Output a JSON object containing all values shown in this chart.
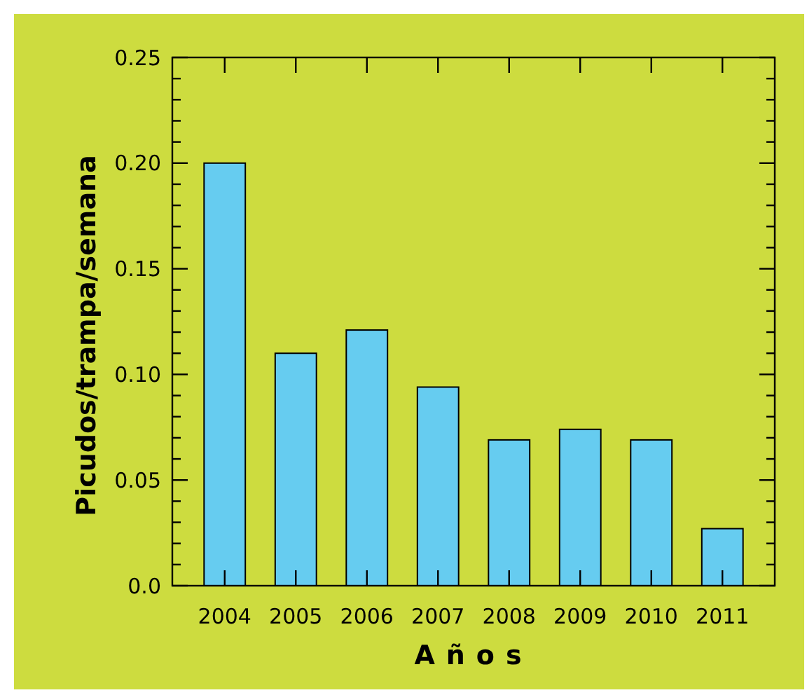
{
  "chart_data": {
    "type": "bar",
    "xlabel": "Años",
    "ylabel": "Picudos/trampa/semana",
    "categories": [
      "2004",
      "2005",
      "2006",
      "2007",
      "2008",
      "2009",
      "2010",
      "2011"
    ],
    "values": [
      0.2,
      0.11,
      0.121,
      0.094,
      0.069,
      0.074,
      0.069,
      0.027
    ],
    "color": "#66ccf0",
    "ylim": [
      0,
      0.25
    ],
    "yticks": [
      {
        "value": 0,
        "label": "0.0"
      },
      {
        "value": 0.01,
        "label": null
      },
      {
        "value": 0.02,
        "label": null
      },
      {
        "value": 0.03,
        "label": null
      },
      {
        "value": 0.04,
        "label": null
      },
      {
        "value": 0.05,
        "label": "0.05"
      },
      {
        "value": 0.06,
        "label": null
      },
      {
        "value": 0.07,
        "label": null
      },
      {
        "value": 0.08,
        "label": null
      },
      {
        "value": 0.09,
        "label": null
      },
      {
        "value": 0.1,
        "label": "0.10"
      },
      {
        "value": 0.11,
        "label": null
      },
      {
        "value": 0.12,
        "label": null
      },
      {
        "value": 0.13,
        "label": null
      },
      {
        "value": 0.14,
        "label": null
      },
      {
        "value": 0.15,
        "label": "0.15"
      },
      {
        "value": 0.16,
        "label": null
      },
      {
        "value": 0.17,
        "label": null
      },
      {
        "value": 0.18,
        "label": null
      },
      {
        "value": 0.19,
        "label": null
      },
      {
        "value": 0.2,
        "label": "0.20"
      },
      {
        "value": 0.21,
        "label": null
      },
      {
        "value": 0.22,
        "label": null
      },
      {
        "value": 0.23,
        "label": null
      },
      {
        "value": 0.24,
        "label": null
      },
      {
        "value": 0.25,
        "label": "0.25"
      }
    ],
    "grid": false
  }
}
